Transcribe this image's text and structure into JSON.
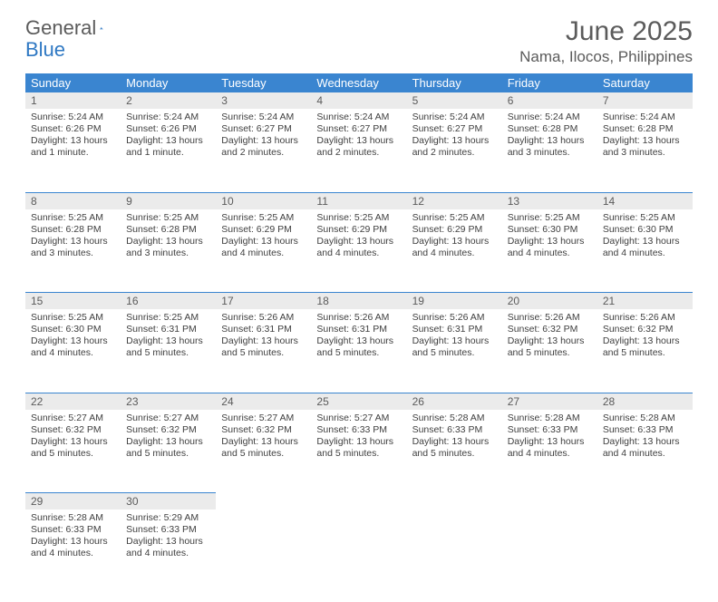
{
  "logo": {
    "text1": "General",
    "text2": "Blue"
  },
  "title": "June 2025",
  "location": "Nama, Ilocos, Philippines",
  "colors": {
    "header_bg": "#3a85d0",
    "header_text": "#ffffff",
    "daynum_bg": "#ebebeb",
    "text_dark": "#5b5b5b",
    "cell_text": "#404040",
    "page_bg": "#ffffff",
    "rule": "#3a85d0"
  },
  "weekdays": [
    "Sunday",
    "Monday",
    "Tuesday",
    "Wednesday",
    "Thursday",
    "Friday",
    "Saturday"
  ],
  "days": [
    {
      "num": "1",
      "sunrise": "5:24 AM",
      "sunset": "6:26 PM",
      "daylight": "13 hours and 1 minute."
    },
    {
      "num": "2",
      "sunrise": "5:24 AM",
      "sunset": "6:26 PM",
      "daylight": "13 hours and 1 minute."
    },
    {
      "num": "3",
      "sunrise": "5:24 AM",
      "sunset": "6:27 PM",
      "daylight": "13 hours and 2 minutes."
    },
    {
      "num": "4",
      "sunrise": "5:24 AM",
      "sunset": "6:27 PM",
      "daylight": "13 hours and 2 minutes."
    },
    {
      "num": "5",
      "sunrise": "5:24 AM",
      "sunset": "6:27 PM",
      "daylight": "13 hours and 2 minutes."
    },
    {
      "num": "6",
      "sunrise": "5:24 AM",
      "sunset": "6:28 PM",
      "daylight": "13 hours and 3 minutes."
    },
    {
      "num": "7",
      "sunrise": "5:24 AM",
      "sunset": "6:28 PM",
      "daylight": "13 hours and 3 minutes."
    },
    {
      "num": "8",
      "sunrise": "5:25 AM",
      "sunset": "6:28 PM",
      "daylight": "13 hours and 3 minutes."
    },
    {
      "num": "9",
      "sunrise": "5:25 AM",
      "sunset": "6:28 PM",
      "daylight": "13 hours and 3 minutes."
    },
    {
      "num": "10",
      "sunrise": "5:25 AM",
      "sunset": "6:29 PM",
      "daylight": "13 hours and 4 minutes."
    },
    {
      "num": "11",
      "sunrise": "5:25 AM",
      "sunset": "6:29 PM",
      "daylight": "13 hours and 4 minutes."
    },
    {
      "num": "12",
      "sunrise": "5:25 AM",
      "sunset": "6:29 PM",
      "daylight": "13 hours and 4 minutes."
    },
    {
      "num": "13",
      "sunrise": "5:25 AM",
      "sunset": "6:30 PM",
      "daylight": "13 hours and 4 minutes."
    },
    {
      "num": "14",
      "sunrise": "5:25 AM",
      "sunset": "6:30 PM",
      "daylight": "13 hours and 4 minutes."
    },
    {
      "num": "15",
      "sunrise": "5:25 AM",
      "sunset": "6:30 PM",
      "daylight": "13 hours and 4 minutes."
    },
    {
      "num": "16",
      "sunrise": "5:25 AM",
      "sunset": "6:31 PM",
      "daylight": "13 hours and 5 minutes."
    },
    {
      "num": "17",
      "sunrise": "5:26 AM",
      "sunset": "6:31 PM",
      "daylight": "13 hours and 5 minutes."
    },
    {
      "num": "18",
      "sunrise": "5:26 AM",
      "sunset": "6:31 PM",
      "daylight": "13 hours and 5 minutes."
    },
    {
      "num": "19",
      "sunrise": "5:26 AM",
      "sunset": "6:31 PM",
      "daylight": "13 hours and 5 minutes."
    },
    {
      "num": "20",
      "sunrise": "5:26 AM",
      "sunset": "6:32 PM",
      "daylight": "13 hours and 5 minutes."
    },
    {
      "num": "21",
      "sunrise": "5:26 AM",
      "sunset": "6:32 PM",
      "daylight": "13 hours and 5 minutes."
    },
    {
      "num": "22",
      "sunrise": "5:27 AM",
      "sunset": "6:32 PM",
      "daylight": "13 hours and 5 minutes."
    },
    {
      "num": "23",
      "sunrise": "5:27 AM",
      "sunset": "6:32 PM",
      "daylight": "13 hours and 5 minutes."
    },
    {
      "num": "24",
      "sunrise": "5:27 AM",
      "sunset": "6:32 PM",
      "daylight": "13 hours and 5 minutes."
    },
    {
      "num": "25",
      "sunrise": "5:27 AM",
      "sunset": "6:33 PM",
      "daylight": "13 hours and 5 minutes."
    },
    {
      "num": "26",
      "sunrise": "5:28 AM",
      "sunset": "6:33 PM",
      "daylight": "13 hours and 5 minutes."
    },
    {
      "num": "27",
      "sunrise": "5:28 AM",
      "sunset": "6:33 PM",
      "daylight": "13 hours and 4 minutes."
    },
    {
      "num": "28",
      "sunrise": "5:28 AM",
      "sunset": "6:33 PM",
      "daylight": "13 hours and 4 minutes."
    },
    {
      "num": "29",
      "sunrise": "5:28 AM",
      "sunset": "6:33 PM",
      "daylight": "13 hours and 4 minutes."
    },
    {
      "num": "30",
      "sunrise": "5:29 AM",
      "sunset": "6:33 PM",
      "daylight": "13 hours and 4 minutes."
    }
  ],
  "labels": {
    "sunrise": "Sunrise:",
    "sunset": "Sunset:",
    "daylight": "Daylight:"
  },
  "layout": {
    "start_weekday": 0,
    "total_days": 30,
    "columns": 7
  },
  "typography": {
    "title_fontsize": 30,
    "location_fontsize": 17,
    "weekday_fontsize": 13,
    "daynum_fontsize": 12,
    "cell_fontsize": 10.5,
    "font_family": "Arial"
  }
}
